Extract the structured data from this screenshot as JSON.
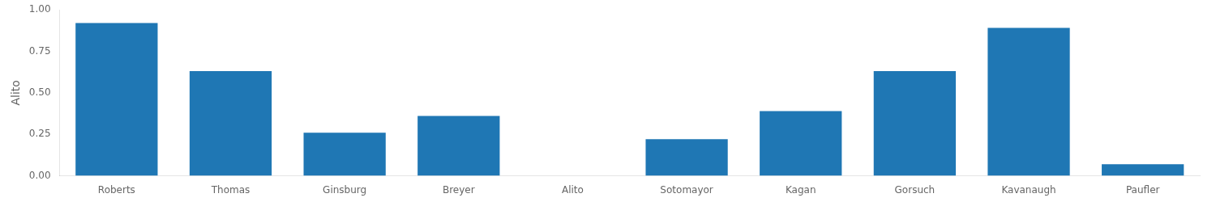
{
  "chart_data": {
    "type": "bar",
    "ylabel": "Alito",
    "categories": [
      "Roberts",
      "Thomas",
      "Ginsburg",
      "Breyer",
      "Alito",
      "Sotomayor",
      "Kagan",
      "Gorsuch",
      "Kavanaugh",
      "Paufler"
    ],
    "values": [
      0.92,
      0.63,
      0.26,
      0.36,
      0.0,
      0.22,
      0.39,
      0.63,
      0.89,
      0.07
    ],
    "color": "#1f77b4",
    "ylim": [
      0.0,
      1.0
    ],
    "yticks": [
      {
        "value": 0.0,
        "label": "0.00"
      },
      {
        "value": 0.25,
        "label": "0.25"
      },
      {
        "value": 0.5,
        "label": "0.50"
      },
      {
        "value": 0.75,
        "label": "0.75"
      },
      {
        "value": 1.0,
        "label": "1.00"
      }
    ],
    "grid": false
  }
}
